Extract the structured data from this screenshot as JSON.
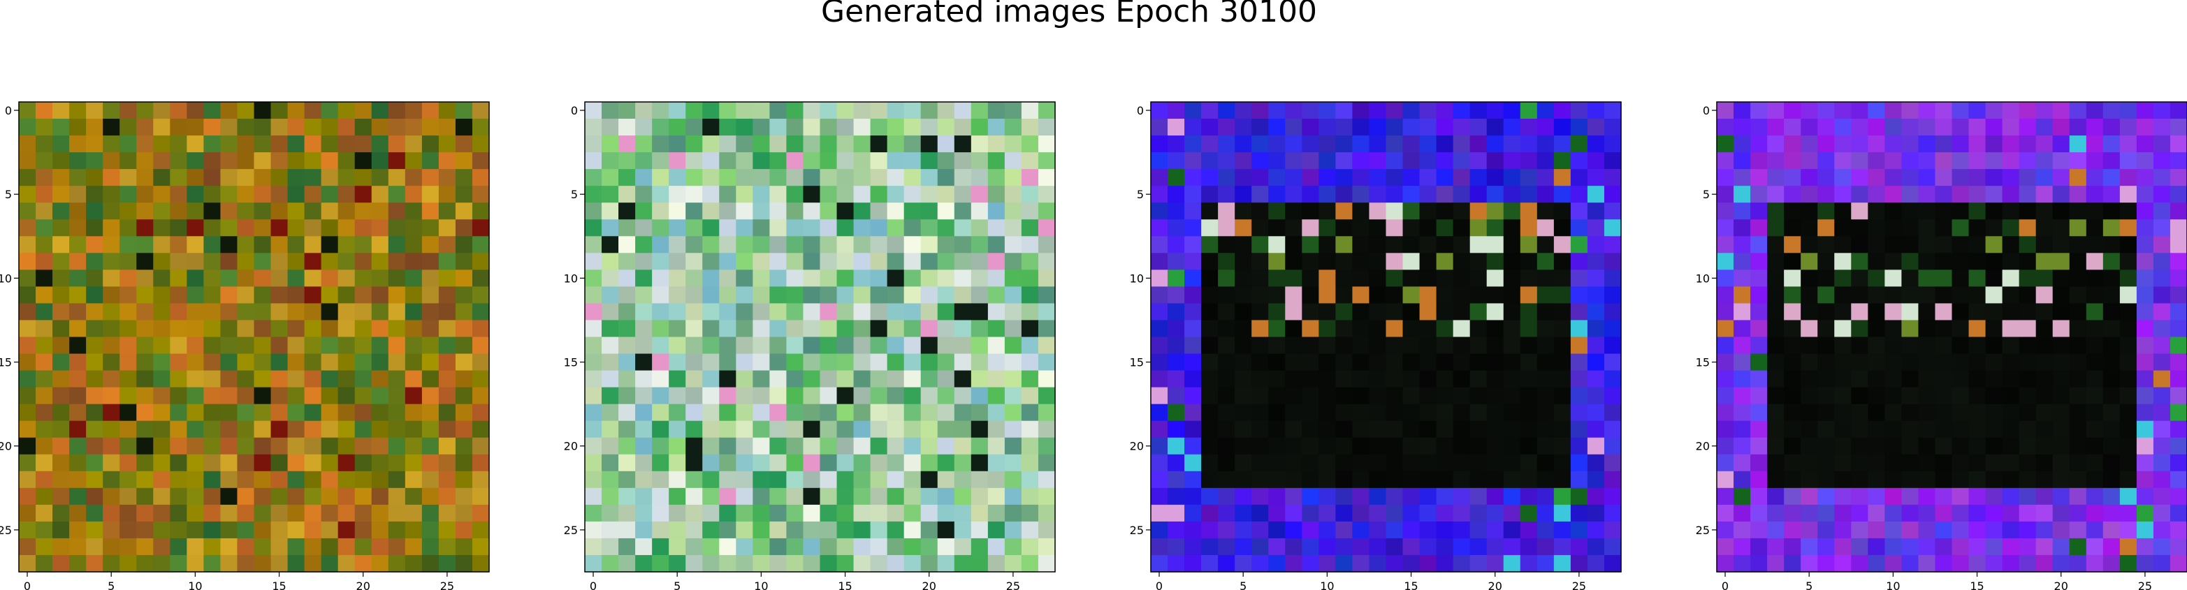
{
  "figure": {
    "title": "Generated images Epoch 30100"
  },
  "chart_data": [
    {
      "type": "heatmap",
      "description": "Image panel 1 (28x28 RGB image, warm olive/orange tones)",
      "xlim": [
        -0.5,
        27.5
      ],
      "ylim": [
        27.5,
        -0.5
      ],
      "xticks": [
        0,
        5,
        10,
        15,
        20,
        25
      ],
      "yticks": [
        0,
        5,
        10,
        15,
        20,
        25
      ],
      "palette": "warm"
    },
    {
      "type": "heatmap",
      "description": "Image panel 2 (28x28 RGB image, pastel greens/teals)",
      "xlim": [
        -0.5,
        27.5
      ],
      "ylim": [
        27.5,
        -0.5
      ],
      "xticks": [
        0,
        5,
        10,
        15,
        20,
        25
      ],
      "yticks": [
        0,
        5,
        10,
        15,
        20,
        25
      ],
      "palette": "pastel"
    },
    {
      "type": "heatmap",
      "description": "Image panel 3 (28x28 RGB image, blue border with dark center)",
      "xlim": [
        -0.5,
        27.5
      ],
      "ylim": [
        27.5,
        -0.5
      ],
      "xticks": [
        0,
        5,
        10,
        15,
        20,
        25
      ],
      "yticks": [
        0,
        5,
        10,
        15,
        20,
        25
      ],
      "palette": "framed-blue"
    },
    {
      "type": "heatmap",
      "description": "Image panel 4 (28x28 RGB image, purple/blue border with dark center)",
      "xlim": [
        -0.5,
        27.5
      ],
      "ylim": [
        27.5,
        -0.5
      ],
      "xticks": [
        0,
        5,
        10,
        15,
        20,
        25
      ],
      "yticks": [
        0,
        5,
        10,
        15,
        20,
        25
      ],
      "palette": "framed-purple"
    }
  ]
}
